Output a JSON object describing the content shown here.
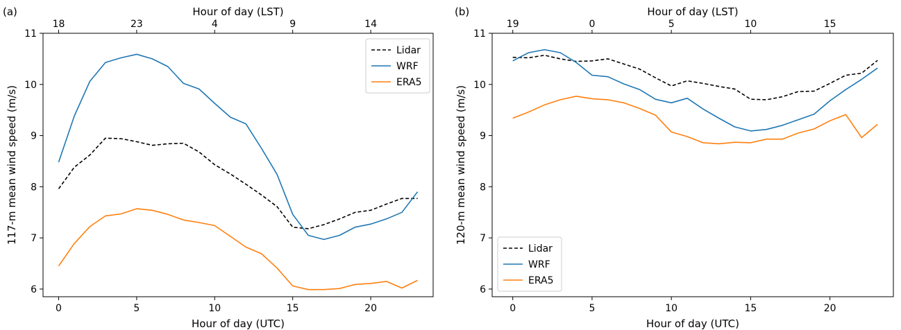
{
  "panels": [
    {
      "label": "(a)",
      "legend_position": "top-right"
    },
    {
      "label": "(b)",
      "legend_position": "bottom-left"
    }
  ],
  "chart_data": [
    {
      "type": "line",
      "title": "",
      "xlabel": "Hour of day (UTC)",
      "ylabel": "117-m mean wind speed (m/s)",
      "top_xlabel": "Hour of day (LST)",
      "xlim": [
        -1,
        24
      ],
      "ylim": [
        5.85,
        11.0
      ],
      "xticks": [
        0,
        5,
        10,
        15,
        20
      ],
      "yticks": [
        6,
        7,
        8,
        9,
        10,
        11
      ],
      "top_ticks": [
        {
          "x": 0,
          "label": "18"
        },
        {
          "x": 5,
          "label": "23"
        },
        {
          "x": 10,
          "label": "4"
        },
        {
          "x": 15,
          "label": "9"
        },
        {
          "x": 20,
          "label": "14"
        }
      ],
      "grid": false,
      "legend": "top-right",
      "x": [
        0,
        1,
        2,
        3,
        4,
        5,
        6,
        7,
        8,
        9,
        10,
        11,
        12,
        13,
        14,
        15,
        16,
        17,
        18,
        19,
        20,
        21,
        22,
        23
      ],
      "series": [
        {
          "name": "Lidar",
          "color": "#000000",
          "dash": true,
          "values": [
            7.96,
            8.38,
            8.62,
            8.95,
            8.94,
            8.88,
            8.81,
            8.84,
            8.85,
            8.68,
            8.43,
            8.25,
            8.05,
            7.84,
            7.61,
            7.21,
            7.18,
            7.26,
            7.37,
            7.5,
            7.54,
            7.66,
            7.77,
            7.77
          ]
        },
        {
          "name": "WRF",
          "color": "#1f77b4",
          "dash": false,
          "values": [
            8.48,
            9.38,
            10.06,
            10.43,
            10.52,
            10.59,
            10.5,
            10.35,
            10.02,
            9.91,
            9.63,
            9.36,
            9.23,
            8.75,
            8.24,
            7.46,
            7.05,
            6.97,
            7.05,
            7.21,
            7.27,
            7.37,
            7.5,
            7.9
          ]
        },
        {
          "name": "ERA5",
          "color": "#ff7f0e",
          "dash": false,
          "values": [
            6.45,
            6.89,
            7.22,
            7.43,
            7.47,
            7.57,
            7.54,
            7.46,
            7.35,
            7.3,
            7.24,
            7.03,
            6.82,
            6.69,
            6.41,
            6.06,
            5.99,
            5.99,
            6.01,
            6.09,
            6.11,
            6.15,
            6.02,
            6.17
          ]
        }
      ]
    },
    {
      "type": "line",
      "title": "",
      "xlabel": "Hour of day (UTC)",
      "ylabel": "120-m mean wind speed (m/s)",
      "top_xlabel": "Hour of day (LST)",
      "xlim": [
        -1.3,
        24
      ],
      "ylim": [
        5.85,
        11.0
      ],
      "xticks": [
        0,
        5,
        10,
        15,
        20
      ],
      "yticks": [
        6,
        7,
        8,
        9,
        10,
        11
      ],
      "top_ticks": [
        {
          "x": 0,
          "label": "19"
        },
        {
          "x": 5,
          "label": "0"
        },
        {
          "x": 10,
          "label": "5"
        },
        {
          "x": 15,
          "label": "10"
        },
        {
          "x": 20,
          "label": "15"
        }
      ],
      "grid": false,
      "legend": "bottom-left",
      "x": [
        0,
        1,
        2,
        3,
        4,
        5,
        6,
        7,
        8,
        9,
        10,
        11,
        12,
        13,
        14,
        15,
        16,
        17,
        18,
        19,
        20,
        21,
        22,
        23
      ],
      "series": [
        {
          "name": "Lidar",
          "color": "#000000",
          "dash": true,
          "values": [
            10.53,
            10.52,
            10.57,
            10.5,
            10.45,
            10.46,
            10.5,
            10.4,
            10.3,
            10.13,
            9.97,
            10.07,
            10.02,
            9.96,
            9.91,
            9.71,
            9.7,
            9.76,
            9.86,
            9.87,
            10.02,
            10.18,
            10.22,
            10.47
          ]
        },
        {
          "name": "WRF",
          "color": "#1f77b4",
          "dash": false,
          "values": [
            10.46,
            10.62,
            10.68,
            10.62,
            10.43,
            10.18,
            10.15,
            10.01,
            9.9,
            9.71,
            9.64,
            9.73,
            9.52,
            9.34,
            9.17,
            9.09,
            9.12,
            9.2,
            9.31,
            9.42,
            9.68,
            9.9,
            10.1,
            10.32
          ]
        },
        {
          "name": "ERA5",
          "color": "#ff7f0e",
          "dash": false,
          "values": [
            9.34,
            9.46,
            9.6,
            9.7,
            9.77,
            9.72,
            9.7,
            9.64,
            9.53,
            9.4,
            9.07,
            8.98,
            8.86,
            8.84,
            8.87,
            8.86,
            8.93,
            8.93,
            9.05,
            9.13,
            9.29,
            9.41,
            8.96,
            9.22
          ]
        }
      ]
    }
  ]
}
